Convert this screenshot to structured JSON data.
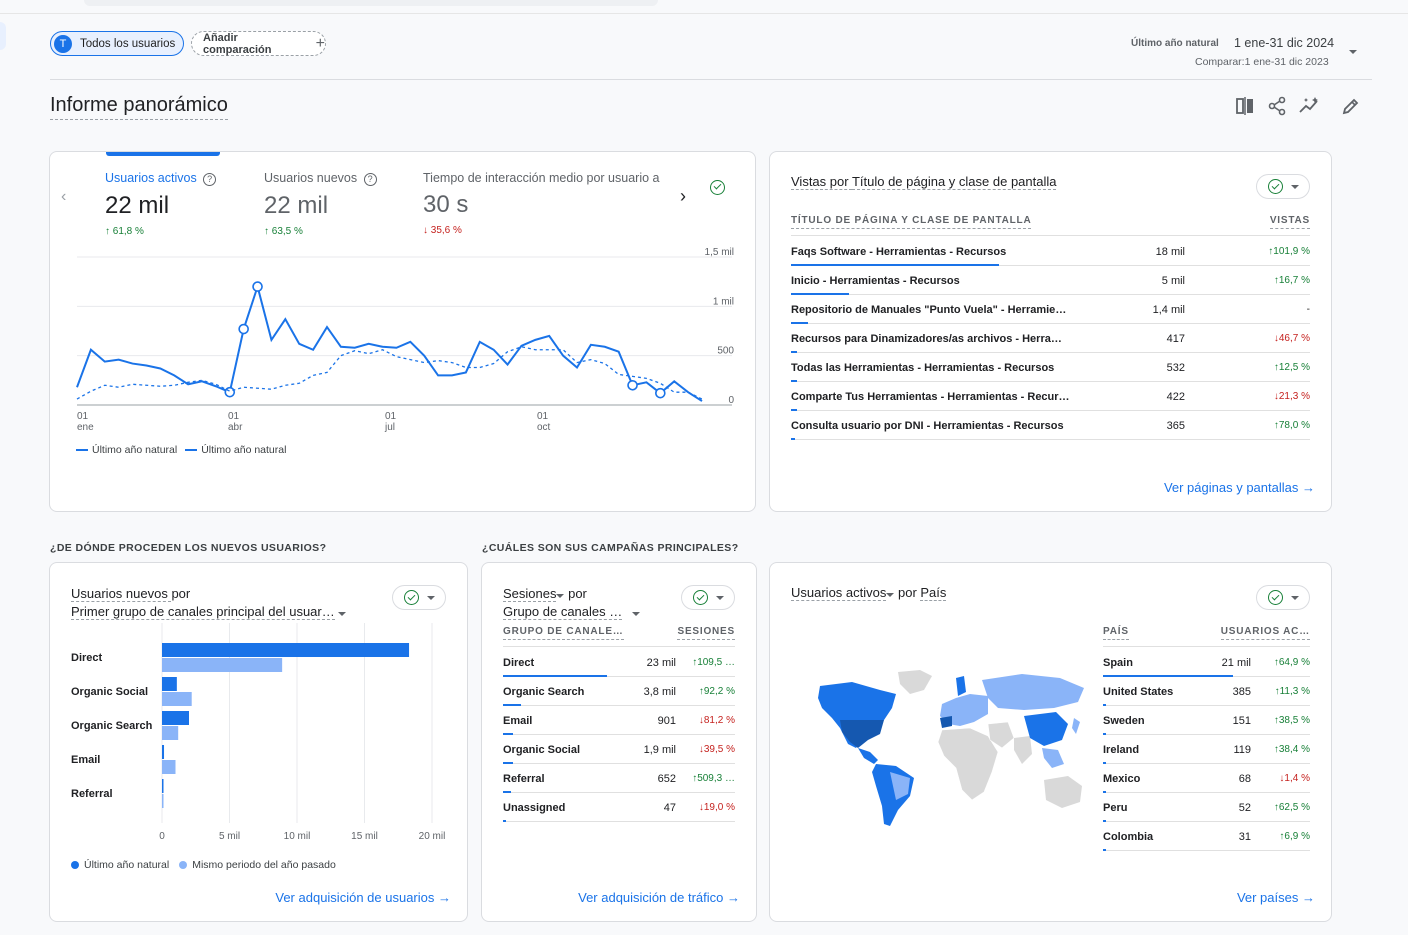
{
  "header": {
    "segment_chip": "Todos los usuarios",
    "segment_avatar": "T",
    "compare_chip": "Añadir comparación",
    "date_label": "Último año natural",
    "date_range": "1 ene-31 dic 2024",
    "compare_range": "Comparar:1 ene-31 dic 2023"
  },
  "page": {
    "title": "Informe panorámico"
  },
  "sections": {
    "new_users": "¿DE DÓNDE PROCEDEN LOS NUEVOS USUARIOS?",
    "campaigns": "¿CUÁLES SON SUS CAMPAÑAS PRINCIPALES?"
  },
  "overview": {
    "metrics": [
      {
        "label": "Usuarios activos",
        "value": "22 mil",
        "change": "61,8 %",
        "direction": "up"
      },
      {
        "label": "Usuarios nuevos",
        "value": "22 mil",
        "change": "63,5 %",
        "direction": "up"
      },
      {
        "label": "Tiempo de interacción medio por usuario a",
        "value": "30 s",
        "change": "35,6 %",
        "direction": "down"
      }
    ],
    "legend": [
      "Último año natural",
      "Último año natural"
    ]
  },
  "pages": {
    "title_a": "Vistas por ",
    "title_b": "Título de página y clase de pantalla",
    "col1": "TÍTULO DE PÁGINA Y CLASE DE PANTALLA",
    "col2": "VISTAS",
    "rows": [
      {
        "name": "Faqs Software - Herramientas - Recursos",
        "value": "18 mil",
        "change": "101,9 %",
        "dir": "up",
        "bar": 1.0
      },
      {
        "name": "Inicio - Herramientas - Recursos",
        "value": "5 mil",
        "change": "16,7 %",
        "dir": "up",
        "bar": 0.28
      },
      {
        "name": "Repositorio de Manuales \"Punto Vuela\" - Herramien…",
        "value": "1,4 mil",
        "change": "-",
        "dir": "none",
        "bar": 0.08
      },
      {
        "name": "Recursos para Dinamizadores/as archivos - Herram…",
        "value": "417",
        "change": "46,7 %",
        "dir": "down",
        "bar": 0.03
      },
      {
        "name": "Todas las Herramientas - Herramientas - Recursos",
        "value": "532",
        "change": "12,5 %",
        "dir": "up",
        "bar": 0.03
      },
      {
        "name": "Comparte Tus Herramientas - Herramientas - Recur…",
        "value": "422",
        "change": "21,3 %",
        "dir": "down",
        "bar": 0.03
      },
      {
        "name": "Consulta usuario por DNI - Herramientas - Recursos",
        "value": "365",
        "change": "78,0 %",
        "dir": "up",
        "bar": 0.02
      }
    ],
    "link": "Ver páginas y pantallas"
  },
  "acquisition": {
    "title_a": "Usuarios nuevos ",
    "title_b": "por",
    "title_c": "Primer grupo de canales principal del usuar…",
    "legend_current": "Último año natural",
    "legend_previous": "Mismo periodo del año pasado",
    "link": "Ver adquisición de usuarios"
  },
  "traffic": {
    "title_a": "Sesiones",
    "title_b": " por",
    "title_c": "Grupo de canales …",
    "col1": "GRUPO DE CANALE…",
    "col2": "SESIONES",
    "rows": [
      {
        "name": "Direct",
        "value": "23 mil",
        "change": "109,5 …",
        "dir": "up",
        "bar": 1.0
      },
      {
        "name": "Organic Search",
        "value": "3,8 mil",
        "change": "92,2 %",
        "dir": "up",
        "bar": 0.17
      },
      {
        "name": "Email",
        "value": "901",
        "change": "81,2 %",
        "dir": "down",
        "bar": 0.1
      },
      {
        "name": "Organic Social",
        "value": "1,9 mil",
        "change": "39,5 %",
        "dir": "down",
        "bar": 0.1
      },
      {
        "name": "Referral",
        "value": "652",
        "change": "509,3 …",
        "dir": "up",
        "bar": 0.08
      },
      {
        "name": "Unassigned",
        "value": "47",
        "change": "19,0 %",
        "dir": "down",
        "bar": 0.01
      }
    ],
    "link": "Ver adquisición de tráfico"
  },
  "countries": {
    "title_a": "Usuarios activos",
    "title_b": " por ",
    "title_c": "País",
    "col1": "PAÍS",
    "col2": "USUARIOS AC…",
    "rows": [
      {
        "name": "Spain",
        "value": "21 mil",
        "change": "64,9 %",
        "dir": "up",
        "bar": 1.0
      },
      {
        "name": "United States",
        "value": "385",
        "change": "11,3 %",
        "dir": "up",
        "bar": 0.02
      },
      {
        "name": "Sweden",
        "value": "151",
        "change": "38,5 %",
        "dir": "up",
        "bar": 0.01
      },
      {
        "name": "Ireland",
        "value": "119",
        "change": "38,4 %",
        "dir": "up",
        "bar": 0.01
      },
      {
        "name": "Mexico",
        "value": "68",
        "change": "1,4 %",
        "dir": "down",
        "bar": 0.01
      },
      {
        "name": "Peru",
        "value": "52",
        "change": "62,5 %",
        "dir": "up",
        "bar": 0.01
      },
      {
        "name": "Colombia",
        "value": "31",
        "change": "6,9 %",
        "dir": "up",
        "bar": 0.01
      }
    ],
    "link": "Ver países"
  },
  "colors": {
    "accent": "#1a73e8",
    "light": "#8ab4f8",
    "up": "#188038",
    "down": "#c5221f"
  },
  "chart_data": [
    {
      "type": "line",
      "x_ticks": [
        {
          "day": "01",
          "month": "ene"
        },
        {
          "day": "01",
          "month": "abr"
        },
        {
          "day": "01",
          "month": "jul"
        },
        {
          "day": "01",
          "month": "oct"
        }
      ],
      "y_ticks": [
        "1,5 mil",
        "1 mil",
        "500",
        "0"
      ],
      "ylim": [
        0,
        1500
      ],
      "series": [
        {
          "name": "Último año natural",
          "style": "solid",
          "values": [
            180,
            560,
            440,
            460,
            420,
            400,
            370,
            300,
            210,
            240,
            190,
            130,
            770,
            1200,
            660,
            870,
            620,
            560,
            790,
            590,
            580,
            620,
            590,
            580,
            640,
            500,
            300,
            300,
            330,
            640,
            560,
            410,
            600,
            660,
            700,
            500,
            380,
            610,
            590,
            540,
            200,
            230,
            120,
            240,
            130,
            40
          ]
        },
        {
          "name": "Último año natural",
          "style": "dashed",
          "values": [
            60,
            140,
            200,
            180,
            210,
            200,
            190,
            200,
            230,
            250,
            210,
            140,
            180,
            170,
            160,
            200,
            220,
            300,
            330,
            500,
            550,
            520,
            560,
            490,
            460,
            430,
            450,
            430,
            380,
            380,
            420,
            540,
            590,
            560,
            560,
            560,
            430,
            460,
            420,
            310,
            290,
            270,
            220,
            130,
            130,
            60
          ]
        }
      ]
    },
    {
      "type": "bar",
      "categories": [
        "Direct",
        "Organic Social",
        "Organic Search",
        "Email",
        "Referral"
      ],
      "x_ticks": [
        "0",
        "5 mil",
        "10 mil",
        "15 mil",
        "20 mil"
      ],
      "xlim": [
        0,
        20000
      ],
      "series": [
        {
          "name": "Último año natural",
          "values": [
            18300,
            1100,
            2000,
            150,
            80
          ]
        },
        {
          "name": "Mismo periodo del año pasado",
          "values": [
            8900,
            2200,
            1200,
            1000,
            20
          ]
        }
      ]
    }
  ]
}
